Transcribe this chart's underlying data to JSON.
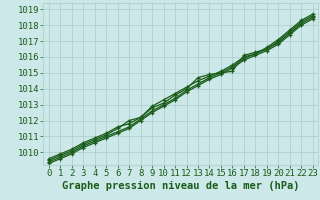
{
  "xlabel": "Graphe pression niveau de la mer (hPa)",
  "x_ticks": [
    0,
    1,
    2,
    3,
    4,
    5,
    6,
    7,
    8,
    9,
    10,
    11,
    12,
    13,
    14,
    15,
    16,
    17,
    18,
    19,
    20,
    21,
    22,
    23
  ],
  "ylim": [
    1009.2,
    1019.4
  ],
  "xlim": [
    -0.5,
    23.5
  ],
  "y_ticks": [
    1010,
    1011,
    1012,
    1013,
    1014,
    1015,
    1016,
    1017,
    1018,
    1019
  ],
  "bg_color": "#cce8e8",
  "grid_color": "#aacccc",
  "line_color": "#1a5c1a",
  "marker": "+",
  "series": [
    [
      1009.5,
      1009.8,
      1010.1,
      1010.5,
      1010.8,
      1011.1,
      1011.5,
      1012.0,
      1012.2,
      1012.8,
      1013.1,
      1013.6,
      1014.0,
      1014.7,
      1014.9,
      1015.0,
      1015.1,
      1016.1,
      1016.3,
      1016.5,
      1017.0,
      1017.6,
      1018.2,
      1018.6
    ],
    [
      1009.6,
      1009.9,
      1010.2,
      1010.6,
      1010.9,
      1011.2,
      1011.6,
      1011.8,
      1012.2,
      1012.9,
      1013.3,
      1013.7,
      1014.1,
      1014.5,
      1014.8,
      1015.1,
      1015.5,
      1016.0,
      1016.2,
      1016.6,
      1017.1,
      1017.7,
      1018.3,
      1018.7
    ],
    [
      1009.4,
      1009.7,
      1010.0,
      1010.4,
      1010.7,
      1011.0,
      1011.3,
      1011.6,
      1012.1,
      1012.6,
      1013.0,
      1013.4,
      1013.9,
      1014.3,
      1014.7,
      1015.0,
      1015.4,
      1015.9,
      1016.2,
      1016.5,
      1016.9,
      1017.5,
      1018.1,
      1018.5
    ],
    [
      1009.3,
      1009.6,
      1009.9,
      1010.3,
      1010.6,
      1010.9,
      1011.2,
      1011.5,
      1012.0,
      1012.5,
      1012.9,
      1013.3,
      1013.8,
      1014.2,
      1014.6,
      1014.9,
      1015.3,
      1015.8,
      1016.1,
      1016.4,
      1016.8,
      1017.4,
      1018.0,
      1018.4
    ]
  ],
  "tick_fontsize": 6.5,
  "xlabel_fontsize": 7.5,
  "line_width": 0.9,
  "marker_size": 3.5
}
